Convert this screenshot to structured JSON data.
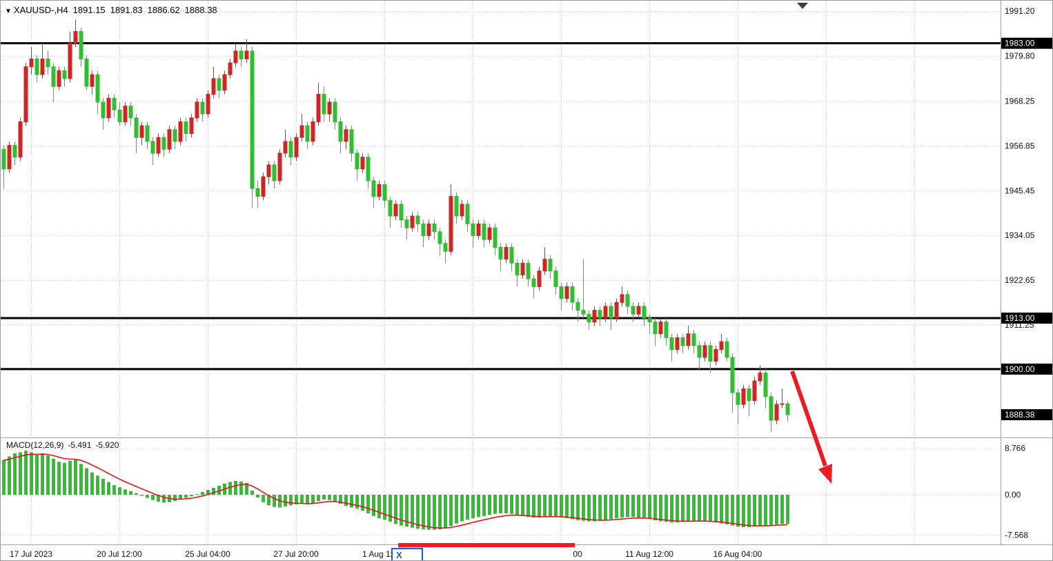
{
  "window": {
    "title": {
      "icon": "▼",
      "symbol": "XAUUSD-,H4",
      "open": "1891.15",
      "high": "1891.83",
      "low": "1886.62",
      "close": "1888.38"
    }
  },
  "colors": {
    "bull": "#d02525",
    "bear": "#2fbf2f",
    "macd_hist": "#2fbf2f",
    "macd_signal": "#e51414",
    "grid": "#c9c9c9",
    "sr_line": "#000000",
    "axis_text": "#111111",
    "label_box_bg": "#000000",
    "label_box_text": "#ffffff",
    "annotation_red": "#ec1c24",
    "annotation_blue": "#1d56d8",
    "separator": "#a0a0a0"
  },
  "chart_data": {
    "type": "candlestick",
    "title": "XAUUSD-,H4",
    "symbol": "XAUUSD-",
    "timeframe": "H4",
    "legend_position": "none",
    "grid": true,
    "price_axis_ticks": [
      {
        "v": 1991.2,
        "t": "1991.20"
      },
      {
        "v": 1979.8,
        "t": "1979.80"
      },
      {
        "v": 1968.25,
        "t": "1968.25"
      },
      {
        "v": 1956.85,
        "t": "1956.85"
      },
      {
        "v": 1945.45,
        "t": "1945.45"
      },
      {
        "v": 1934.05,
        "t": "1934.05"
      },
      {
        "v": 1922.65,
        "t": "1922.65"
      },
      {
        "v": 1911.25,
        "t": "1911.25"
      }
    ],
    "hline_levels": [
      {
        "v": 1983.0,
        "t": "1983.00"
      },
      {
        "v": 1913.0,
        "t": "1913.00"
      },
      {
        "v": 1900.0,
        "t": "1900.00"
      }
    ],
    "current_price": {
      "v": 1888.38,
      "t": "1888.38"
    },
    "x_axis_labels": [
      {
        "i": 5,
        "t": "17 Jul 2023"
      },
      {
        "i": 21,
        "t": "20 Jul 12:00"
      },
      {
        "i": 37,
        "t": "25 Jul 04:00"
      },
      {
        "i": 53,
        "t": "27 Jul 20:00"
      },
      {
        "i": 69,
        "t": "1 Aug 12:00"
      },
      {
        "i": 104,
        "t": "00"
      },
      {
        "i": 117,
        "t": "11 Aug 12:00"
      },
      {
        "i": 133,
        "t": "16 Aug 04:00"
      }
    ],
    "candles": [
      [
        1956,
        1957,
        1946,
        1951
      ],
      [
        1951,
        1958,
        1950,
        1957
      ],
      [
        1957,
        1958,
        1952,
        1954
      ],
      [
        1954,
        1964,
        1953,
        1963
      ],
      [
        1963,
        1978,
        1962,
        1977
      ],
      [
        1977,
        1982,
        1975,
        1979
      ],
      [
        1979,
        1980,
        1973,
        1975
      ],
      [
        1975,
        1983,
        1974,
        1979
      ],
      [
        1979,
        1981,
        1975,
        1977
      ],
      [
        1977,
        1978,
        1968,
        1972
      ],
      [
        1972,
        1977,
        1971,
        1976
      ],
      [
        1976,
        1977,
        1972,
        1974
      ],
      [
        1974,
        1986,
        1973,
        1983
      ],
      [
        1983,
        1989,
        1982,
        1986
      ],
      [
        1986,
        1987,
        1977,
        1979
      ],
      [
        1979,
        1980,
        1971,
        1972
      ],
      [
        1972,
        1976,
        1970,
        1975
      ],
      [
        1975,
        1976,
        1965,
        1968
      ],
      [
        1968,
        1969,
        1961,
        1964
      ],
      [
        1964,
        1970,
        1963,
        1969
      ],
      [
        1969,
        1970,
        1964,
        1966
      ],
      [
        1966,
        1968,
        1962,
        1963
      ],
      [
        1963,
        1968,
        1962,
        1967
      ],
      [
        1967,
        1968,
        1962,
        1964
      ],
      [
        1964,
        1965,
        1955,
        1959
      ],
      [
        1959,
        1963,
        1957,
        1962
      ],
      [
        1962,
        1963,
        1956,
        1958
      ],
      [
        1958,
        1959,
        1952,
        1955
      ],
      [
        1955,
        1960,
        1954,
        1959
      ],
      [
        1959,
        1960,
        1954,
        1956
      ],
      [
        1956,
        1962,
        1955,
        1961
      ],
      [
        1961,
        1962,
        1956,
        1958
      ],
      [
        1958,
        1964,
        1957,
        1963
      ],
      [
        1963,
        1964,
        1958,
        1960
      ],
      [
        1960,
        1965,
        1959,
        1964
      ],
      [
        1964,
        1969,
        1963,
        1968
      ],
      [
        1968,
        1969,
        1963,
        1965
      ],
      [
        1965,
        1971,
        1964,
        1970
      ],
      [
        1970,
        1977,
        1969,
        1974
      ],
      [
        1974,
        1975,
        1969,
        1971
      ],
      [
        1971,
        1976,
        1970,
        1975
      ],
      [
        1975,
        1979,
        1974,
        1978
      ],
      [
        1978,
        1983,
        1977,
        1981
      ],
      [
        1981,
        1982,
        1977,
        1979
      ],
      [
        1979,
        1984,
        1978,
        1981
      ],
      [
        1981,
        1982,
        1941,
        1946
      ],
      [
        1946,
        1948,
        1941,
        1944
      ],
      [
        1944,
        1950,
        1943,
        1949
      ],
      [
        1949,
        1953,
        1947,
        1952
      ],
      [
        1952,
        1953,
        1946,
        1948
      ],
      [
        1948,
        1956,
        1947,
        1955
      ],
      [
        1955,
        1961,
        1954,
        1958
      ],
      [
        1958,
        1959,
        1952,
        1954
      ],
      [
        1954,
        1960,
        1953,
        1959
      ],
      [
        1959,
        1965,
        1958,
        1962
      ],
      [
        1962,
        1963,
        1956,
        1958
      ],
      [
        1958,
        1964,
        1957,
        1963
      ],
      [
        1963,
        1973,
        1962,
        1970
      ],
      [
        1970,
        1972,
        1963,
        1965
      ],
      [
        1965,
        1969,
        1963,
        1968
      ],
      [
        1968,
        1969,
        1961,
        1963
      ],
      [
        1963,
        1964,
        1955,
        1958
      ],
      [
        1958,
        1962,
        1956,
        1961
      ],
      [
        1961,
        1962,
        1953,
        1955
      ],
      [
        1955,
        1956,
        1948,
        1951
      ],
      [
        1951,
        1955,
        1950,
        1954
      ],
      [
        1954,
        1955,
        1946,
        1948
      ],
      [
        1948,
        1949,
        1941,
        1944
      ],
      [
        1944,
        1948,
        1943,
        1947
      ],
      [
        1947,
        1948,
        1941,
        1943
      ],
      [
        1943,
        1944,
        1936,
        1939
      ],
      [
        1939,
        1943,
        1938,
        1942
      ],
      [
        1942,
        1943,
        1936,
        1938
      ],
      [
        1938,
        1939,
        1933,
        1936
      ],
      [
        1936,
        1940,
        1935,
        1939
      ],
      [
        1939,
        1940,
        1935,
        1937
      ],
      [
        1937,
        1938,
        1931,
        1934
      ],
      [
        1934,
        1938,
        1933,
        1937
      ],
      [
        1937,
        1938,
        1933,
        1935
      ],
      [
        1935,
        1936,
        1929,
        1932
      ],
      [
        1932,
        1933,
        1927,
        1930
      ],
      [
        1930,
        1947,
        1929,
        1944
      ],
      [
        1944,
        1945,
        1937,
        1939
      ],
      [
        1939,
        1943,
        1938,
        1942
      ],
      [
        1942,
        1943,
        1935,
        1937
      ],
      [
        1937,
        1938,
        1931,
        1934
      ],
      [
        1934,
        1938,
        1933,
        1937
      ],
      [
        1937,
        1938,
        1931,
        1933
      ],
      [
        1933,
        1937,
        1932,
        1936
      ],
      [
        1936,
        1937,
        1929,
        1931
      ],
      [
        1931,
        1932,
        1925,
        1928
      ],
      [
        1928,
        1932,
        1927,
        1931
      ],
      [
        1931,
        1932,
        1925,
        1927
      ],
      [
        1927,
        1928,
        1921,
        1924
      ],
      [
        1924,
        1928,
        1923,
        1927
      ],
      [
        1927,
        1928,
        1921,
        1923
      ],
      [
        1923,
        1924,
        1918,
        1921
      ],
      [
        1921,
        1926,
        1920,
        1925
      ],
      [
        1925,
        1931,
        1924,
        1928
      ],
      [
        1928,
        1929,
        1923,
        1925
      ],
      [
        1925,
        1926,
        1919,
        1921
      ],
      [
        1921,
        1922,
        1915,
        1918
      ],
      [
        1918,
        1922,
        1917,
        1921
      ],
      [
        1921,
        1922,
        1915,
        1917
      ],
      [
        1917,
        1918,
        1912,
        1915
      ],
      [
        1915,
        1928,
        1913,
        1914
      ],
      [
        1914,
        1915,
        1910,
        1912
      ],
      [
        1912,
        1916,
        1911,
        1915
      ],
      [
        1915,
        1916,
        1911,
        1913
      ],
      [
        1913,
        1917,
        1912,
        1916
      ],
      [
        1916,
        1917,
        1910,
        1913
      ],
      [
        1913,
        1918,
        1912,
        1917
      ],
      [
        1917,
        1921,
        1916,
        1919
      ],
      [
        1919,
        1920,
        1914,
        1916
      ],
      [
        1916,
        1917,
        1912,
        1914
      ],
      [
        1914,
        1917,
        1913,
        1916
      ],
      [
        1916,
        1917,
        1911,
        1913
      ],
      [
        1913,
        1914,
        1909,
        1912
      ],
      [
        1912,
        1913,
        1906,
        1909
      ],
      [
        1909,
        1913,
        1908,
        1912
      ],
      [
        1912,
        1913,
        1906,
        1908
      ],
      [
        1908,
        1909,
        1902,
        1905
      ],
      [
        1905,
        1909,
        1904,
        1908
      ],
      [
        1908,
        1909,
        1904,
        1906
      ],
      [
        1906,
        1911,
        1905,
        1909
      ],
      [
        1909,
        1910,
        1904,
        1906
      ],
      [
        1906,
        1907,
        1900,
        1903
      ],
      [
        1903,
        1907,
        1902,
        1906
      ],
      [
        1906,
        1907,
        1899,
        1902
      ],
      [
        1902,
        1906,
        1901,
        1905
      ],
      [
        1905,
        1909,
        1904,
        1907
      ],
      [
        1907,
        1908,
        1902,
        1903
      ],
      [
        1903,
        1904,
        1889,
        1894
      ],
      [
        1894,
        1895,
        1886,
        1891
      ],
      [
        1891,
        1896,
        1890,
        1895
      ],
      [
        1895,
        1896,
        1888,
        1892
      ],
      [
        1892,
        1898,
        1891,
        1897
      ],
      [
        1897,
        1901,
        1896,
        1899
      ],
      [
        1899,
        1900,
        1890,
        1893
      ],
      [
        1893,
        1894,
        1884,
        1887
      ],
      [
        1887,
        1892,
        1886,
        1891
      ],
      [
        1891,
        1895,
        1890,
        1891.2
      ],
      [
        1891.15,
        1891.83,
        1886.62,
        1888.38
      ]
    ],
    "macd": {
      "label": "MACD(12,26,9)",
      "main": "-5.491",
      "signal": "-5.920",
      "axis_ticks": [
        {
          "v": 8.766,
          "t": "8.766"
        },
        {
          "v": 0,
          "t": "0.00"
        },
        {
          "v": -7.568,
          "t": "-7.568"
        }
      ],
      "histogram": [
        6.5,
        7.2,
        7.8,
        8.0,
        8.3,
        8.0,
        7.6,
        7.8,
        7.4,
        6.8,
        6.2,
        6.0,
        6.4,
        6.6,
        5.8,
        5.0,
        4.2,
        3.6,
        3.0,
        2.4,
        1.8,
        1.4,
        1.0,
        0.7,
        0.3,
        -0.2,
        -0.6,
        -1.0,
        -1.3,
        -1.5,
        -1.4,
        -1.2,
        -0.9,
        -0.6,
        -0.3,
        0.1,
        0.5,
        0.9,
        1.3,
        1.7,
        2.1,
        2.4,
        2.6,
        2.5,
        2.2,
        0.8,
        -0.5,
        -1.4,
        -2.0,
        -2.3,
        -2.4,
        -2.2,
        -2.0,
        -1.8,
        -1.7,
        -1.8,
        -1.6,
        -1.2,
        -0.9,
        -1.0,
        -1.3,
        -1.7,
        -2.1,
        -2.4,
        -2.6,
        -3.0,
        -3.5,
        -4.0,
        -4.4,
        -4.7,
        -5.1,
        -5.5,
        -5.8,
        -6.0,
        -6.2,
        -6.4,
        -6.5,
        -6.6,
        -6.6,
        -6.5,
        -6.3,
        -5.9,
        -5.4,
        -5.0,
        -4.7,
        -4.4,
        -4.2,
        -4.0,
        -3.8,
        -3.6,
        -3.5,
        -3.5,
        -3.6,
        -3.8,
        -4.0,
        -4.2,
        -4.3,
        -4.3,
        -4.2,
        -4.1,
        -4.1,
        -4.2,
        -4.4,
        -4.6,
        -4.8,
        -4.9,
        -5.0,
        -5.0,
        -4.9,
        -4.8,
        -4.6,
        -4.4,
        -4.3,
        -4.2,
        -4.2,
        -4.3,
        -4.4,
        -4.6,
        -4.8,
        -5.0,
        -5.1,
        -5.2,
        -5.2,
        -5.1,
        -5.0,
        -4.9,
        -4.9,
        -5.0,
        -5.1,
        -5.2,
        -5.4,
        -5.6,
        -5.8,
        -6.0,
        -6.1,
        -6.1,
        -6.0,
        -5.9,
        -5.8,
        -5.7,
        -5.6,
        -5.5,
        -5.491
      ]
    },
    "annotations": {
      "x_box_text": "X"
    }
  }
}
